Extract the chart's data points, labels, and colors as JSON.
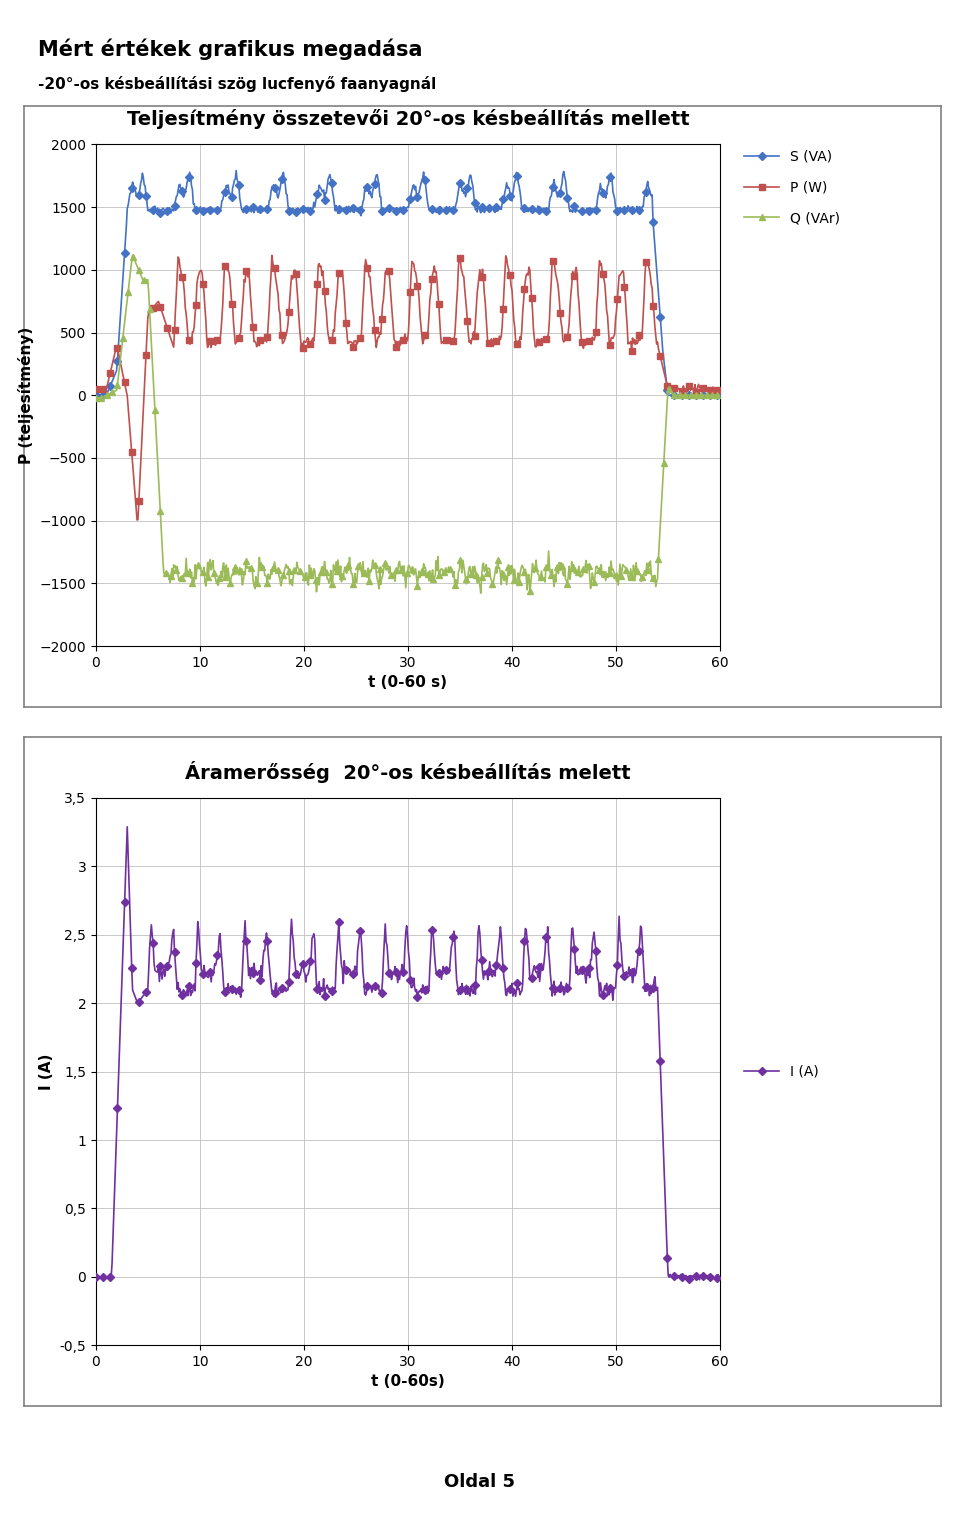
{
  "title1": "Teljesítmény összetevői 20°-os késbeállítás mellett",
  "title2": "Áramerősség  20°-os késbeállítás melett",
  "main_title": "Mért értékek grafikus megadása",
  "subtitle": "-20°-os késbeállítási szög lucfenyő faanyagnál",
  "page_label": "Oldal 5",
  "plot1": {
    "ylabel": "P (teljesítmény)",
    "xlabel": "t (0-60 s)",
    "ylim": [
      -2000,
      2000
    ],
    "xlim": [
      0,
      60
    ],
    "yticks": [
      -2000,
      -1500,
      -1000,
      -500,
      0,
      500,
      1000,
      1500,
      2000
    ],
    "xticks": [
      0,
      10,
      20,
      30,
      40,
      50,
      60
    ],
    "S_color": "#4472C4",
    "P_color": "#C0504D",
    "Q_color": "#9BBB59",
    "legend_S": "S (VA)",
    "legend_P": "P (W)",
    "legend_Q": "Q (VAr)"
  },
  "plot2": {
    "ylabel": "I (A)",
    "xlabel": "t (0-60s)",
    "ylim": [
      -0.5,
      3.5
    ],
    "xlim": [
      0,
      60
    ],
    "yticks": [
      -0.5,
      0,
      0.5,
      1,
      1.5,
      2,
      2.5,
      3,
      3.5
    ],
    "xticks": [
      0,
      10,
      20,
      30,
      40,
      50,
      60
    ],
    "I_color": "#7030A0",
    "legend_I": "I (A)"
  }
}
